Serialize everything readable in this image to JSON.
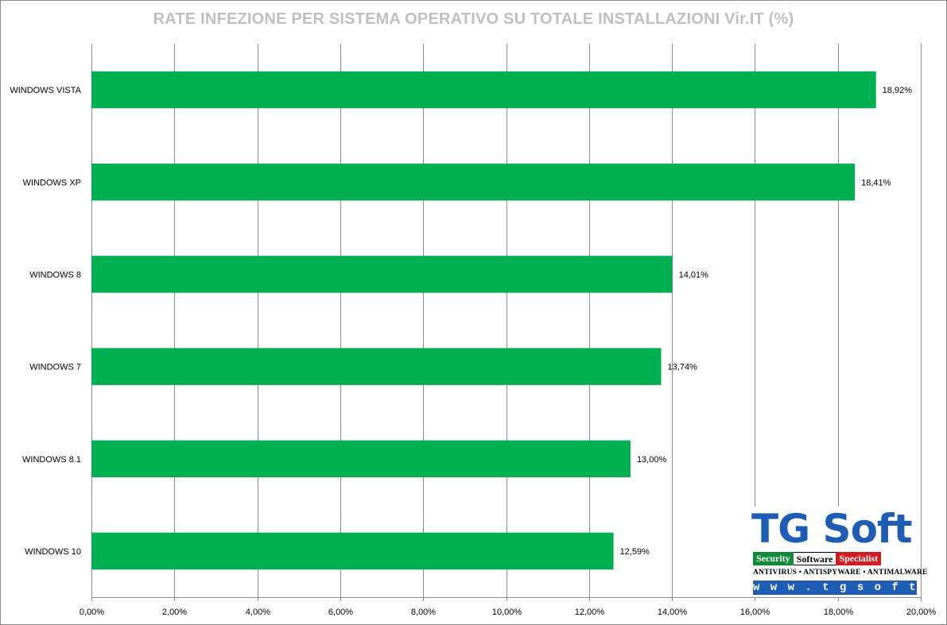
{
  "chart_data": {
    "type": "bar",
    "orientation": "horizontal",
    "title": "RATE INFEZIONE PER SISTEMA OPERATIVO SU TOTALE INSTALLAZIONI Vir.IT (%)",
    "categories": [
      "WINDOWS VISTA",
      "WINDOWS XP",
      "WINDOWS 8",
      "WINDOWS 7",
      "WINDOWS 8.1",
      "WINDOWS 10"
    ],
    "values": [
      18.92,
      18.41,
      14.01,
      13.74,
      13.0,
      12.59
    ],
    "value_labels": [
      "18,92%",
      "18,41%",
      "14,01%",
      "13,74%",
      "13,00%",
      "12,59%"
    ],
    "xlim": [
      0,
      20
    ],
    "xticks": [
      0,
      2,
      4,
      6,
      8,
      10,
      12,
      14,
      16,
      18,
      20
    ],
    "xtick_labels": [
      "0,00%",
      "2,00%",
      "4,00%",
      "6,00%",
      "8,00%",
      "10,00%",
      "12,00%",
      "14,00%",
      "16,00%",
      "18,00%",
      "20,00%"
    ],
    "grid": true,
    "legend": "none",
    "bar_color": "#00b050"
  },
  "logo": {
    "name": "TG Soft",
    "bar": [
      "Security",
      "Software",
      "Specialist"
    ],
    "tagline": "ANTIVIRUS • ANTISPYWARE • ANTIMALWARE",
    "url": "w w w . t g s o f t . i t"
  }
}
